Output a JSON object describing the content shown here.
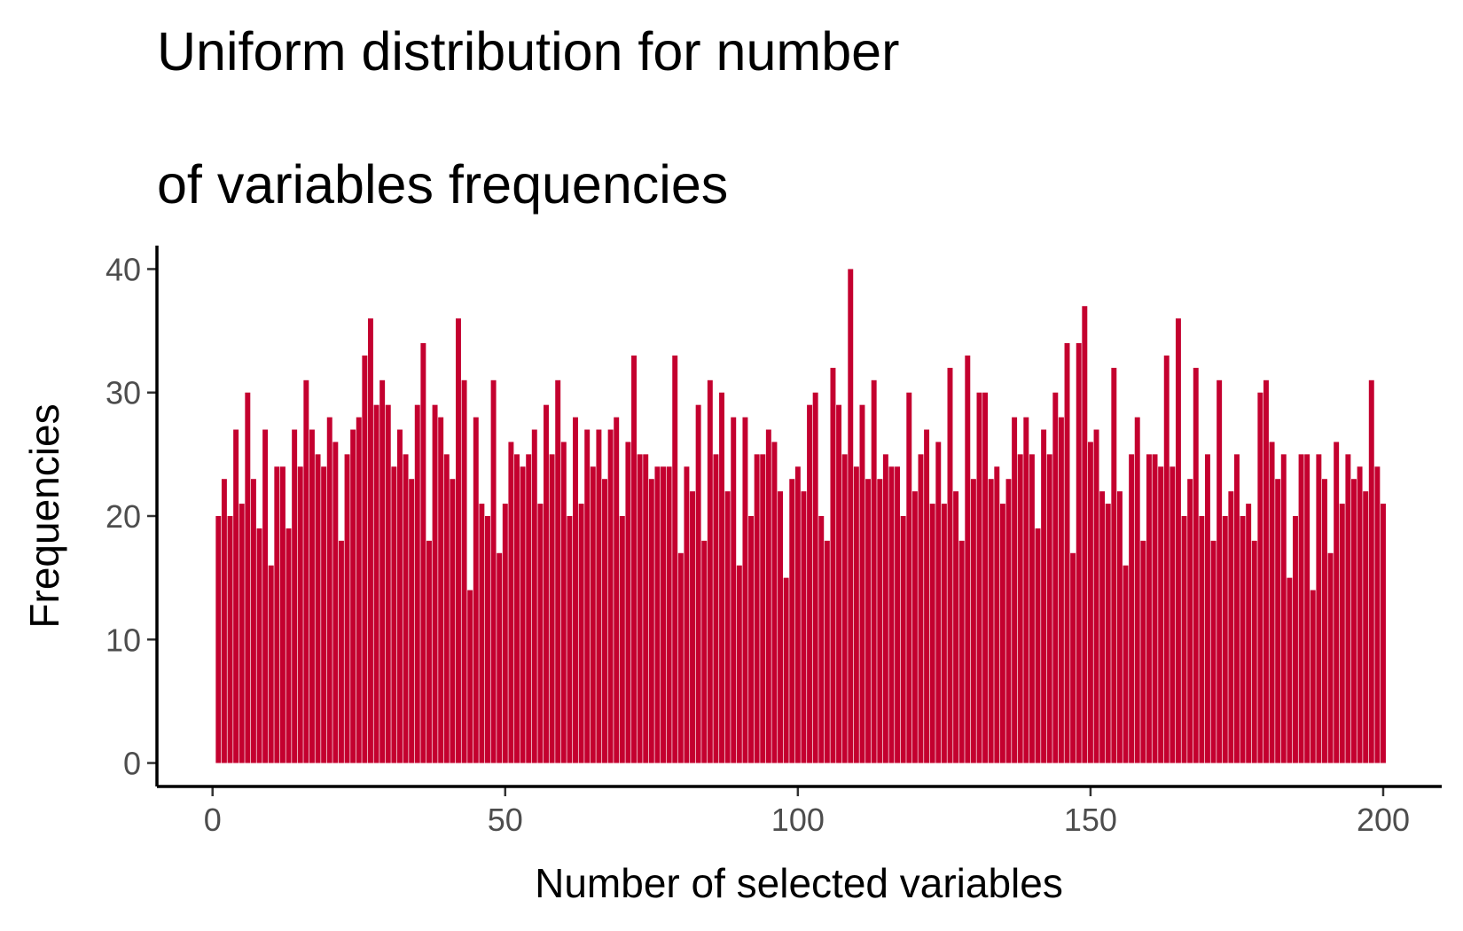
{
  "chart_data": {
    "type": "bar",
    "title": [
      "Uniform distribution for number",
      "of variables frequencies"
    ],
    "x_label": "Number of selected variables",
    "y_label": "Frequencies",
    "color": "#c4002f",
    "grid": false,
    "xlim": [
      -9.5,
      210
    ],
    "xticks": [
      0,
      50,
      100,
      150,
      200
    ],
    "ylim": [
      -1.9,
      41.9
    ],
    "yticks": [
      0,
      10,
      20,
      30,
      40
    ],
    "x": [
      1,
      2,
      3,
      4,
      5,
      6,
      7,
      8,
      9,
      10,
      11,
      12,
      13,
      14,
      15,
      16,
      17,
      18,
      19,
      20,
      21,
      22,
      23,
      24,
      25,
      26,
      27,
      28,
      29,
      30,
      31,
      32,
      33,
      34,
      35,
      36,
      37,
      38,
      39,
      40,
      41,
      42,
      43,
      44,
      45,
      46,
      47,
      48,
      49,
      50,
      51,
      52,
      53,
      54,
      55,
      56,
      57,
      58,
      59,
      60,
      61,
      62,
      63,
      64,
      65,
      66,
      67,
      68,
      69,
      70,
      71,
      72,
      73,
      74,
      75,
      76,
      77,
      78,
      79,
      80,
      81,
      82,
      83,
      84,
      85,
      86,
      87,
      88,
      89,
      90,
      91,
      92,
      93,
      94,
      95,
      96,
      97,
      98,
      99,
      100,
      101,
      102,
      103,
      104,
      105,
      106,
      107,
      108,
      109,
      110,
      111,
      112,
      113,
      114,
      115,
      116,
      117,
      118,
      119,
      120,
      121,
      122,
      123,
      124,
      125,
      126,
      127,
      128,
      129,
      130,
      131,
      132,
      133,
      134,
      135,
      136,
      137,
      138,
      139,
      140,
      141,
      142,
      143,
      144,
      145,
      146,
      147,
      148,
      149,
      150,
      151,
      152,
      153,
      154,
      155,
      156,
      157,
      158,
      159,
      160,
      161,
      162,
      163,
      164,
      165,
      166,
      167,
      168,
      169,
      170,
      171,
      172,
      173,
      174,
      175,
      176,
      177,
      178,
      179,
      180,
      181,
      182,
      183,
      184,
      185,
      186,
      187,
      188,
      189,
      190,
      191,
      192,
      193,
      194,
      195,
      196,
      197,
      198,
      199,
      200
    ],
    "values": [
      20,
      23,
      20,
      27,
      21,
      30,
      23,
      19,
      27,
      16,
      24,
      24,
      19,
      27,
      24,
      31,
      27,
      25,
      24,
      28,
      26,
      18,
      25,
      27,
      28,
      33,
      36,
      29,
      31,
      29,
      24,
      27,
      25,
      23,
      29,
      34,
      18,
      29,
      28,
      25,
      23,
      36,
      31,
      14,
      28,
      21,
      20,
      31,
      17,
      21,
      26,
      25,
      24,
      25,
      27,
      21,
      29,
      25,
      31,
      26,
      20,
      28,
      21,
      27,
      24,
      27,
      23,
      27,
      28,
      20,
      26,
      33,
      25,
      25,
      23,
      24,
      24,
      24,
      33,
      17,
      24,
      22,
      29,
      18,
      31,
      25,
      30,
      22,
      28,
      16,
      28,
      20,
      25,
      25,
      27,
      26,
      22,
      15,
      23,
      24,
      22,
      29,
      30,
      20,
      18,
      32,
      29,
      25,
      40,
      24,
      29,
      23,
      31,
      23,
      25,
      24,
      24,
      20,
      30,
      22,
      25,
      27,
      21,
      26,
      21,
      32,
      22,
      18,
      33,
      23,
      30,
      30,
      23,
      24,
      21,
      23,
      28,
      25,
      28,
      25,
      19,
      27,
      25,
      30,
      28,
      34,
      17,
      34,
      37,
      26,
      27,
      22,
      21,
      32,
      22,
      16,
      25,
      28,
      18,
      25,
      25,
      24,
      33,
      24,
      36,
      20,
      23,
      32,
      20,
      25,
      18,
      31,
      20,
      22,
      25,
      20,
      21,
      18,
      30,
      31,
      26,
      23,
      25,
      15,
      20,
      25,
      25,
      14,
      25,
      23,
      17,
      26,
      21,
      25,
      23,
      24,
      22,
      31,
      24,
      21
    ]
  }
}
